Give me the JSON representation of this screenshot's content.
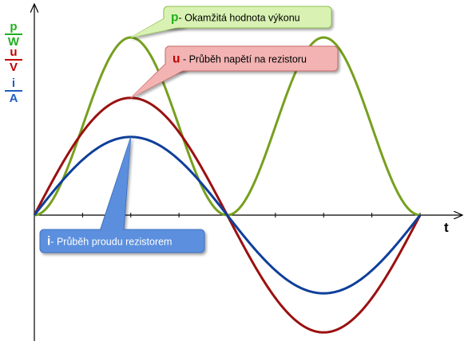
{
  "chart_data": {
    "type": "line",
    "x_axis_label": "t",
    "y_units": [
      {
        "symbol": "p",
        "unit": "W",
        "color": "#22b01f"
      },
      {
        "symbol": "u",
        "unit": "V",
        "color": "#c00000"
      },
      {
        "symbol": "i",
        "unit": "A",
        "color": "#1f5fbf"
      }
    ],
    "series": [
      {
        "key": "p",
        "color": "#76a01e",
        "amplitude": 1.0,
        "kind": "power"
      },
      {
        "key": "u",
        "color": "#9b1010",
        "amplitude": 0.66,
        "kind": "sine"
      },
      {
        "key": "i",
        "color": "#0f3f9a",
        "amplitude": 0.44,
        "kind": "sine"
      }
    ],
    "periods_shown": 1,
    "x_ticks": 8,
    "callouts": [
      {
        "key": "p",
        "symbol": "p",
        "text": "- Okamžitá hodnota výkonu",
        "symbol_color": "#22b01f",
        "fill": "#d9f2b3",
        "stroke": "#8fbf50"
      },
      {
        "key": "u",
        "symbol": "u",
        "text": " - Průběh napětí na rezistoru",
        "symbol_color": "#c00000",
        "fill": "#f3b3b3",
        "stroke": "#c86a6a"
      },
      {
        "key": "i",
        "symbol": "i",
        "text": "- Průběh proudu rezistorem",
        "symbol_color": "#ffffff",
        "fill": "#5b8fde",
        "stroke": "#3f6fbf"
      }
    ]
  }
}
